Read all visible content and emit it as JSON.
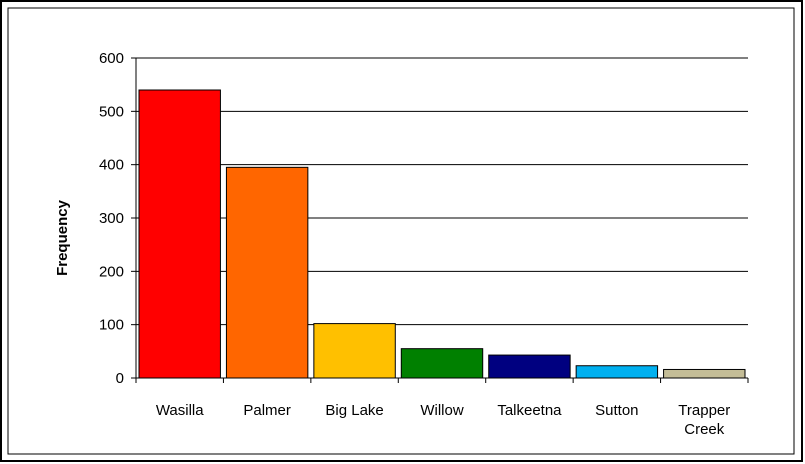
{
  "chart_data": {
    "type": "bar",
    "title": "",
    "xlabel": "",
    "ylabel": "Frequency",
    "ylim": [
      0,
      600
    ],
    "yticks": [
      0,
      100,
      200,
      300,
      400,
      500,
      600
    ],
    "ytick_labels": [
      "0",
      "100",
      "200",
      "300",
      "400",
      "500",
      "600"
    ],
    "grid": true,
    "legend": "none",
    "categories": [
      "Wasilla",
      "Palmer",
      "Big Lake",
      "Willow",
      "Talkeetna",
      "Sutton",
      "Trapper Creek"
    ],
    "category_lines": [
      [
        "Wasilla"
      ],
      [
        "Palmer"
      ],
      [
        "Big Lake"
      ],
      [
        "Willow"
      ],
      [
        "Talkeetna"
      ],
      [
        "Sutton"
      ],
      [
        "Trapper",
        "Creek"
      ]
    ],
    "values": [
      540,
      395,
      102,
      55,
      43,
      23,
      16
    ],
    "colors": [
      "#ff0000",
      "#ff6600",
      "#ffc000",
      "#008000",
      "#000080",
      "#00b0f0",
      "#c4bd97"
    ]
  }
}
